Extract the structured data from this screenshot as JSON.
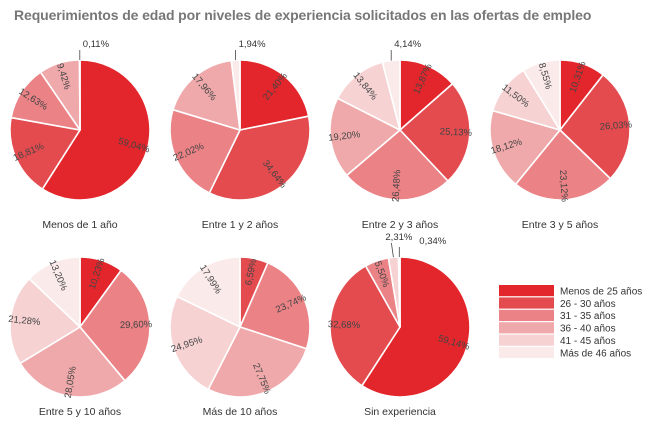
{
  "title": "Requerimientos de edad por niveles de experiencia solicitados en las ofertas de empleo",
  "colors": [
    "#e3262b",
    "#e34b4f",
    "#ea8286",
    "#f0a9ab",
    "#f6d2d3",
    "#fbeaea"
  ],
  "legend": {
    "entries": [
      "Menos de 25 años",
      "26 - 30 años",
      "31 - 35 años",
      "36 - 40 años",
      "41 - 45 años",
      "Más de 46 años"
    ],
    "placement": "right"
  },
  "chart_data": [
    {
      "type": "pie",
      "title": "Menos de 1 año",
      "categories": [
        "Menos de 25 años",
        "26 - 30 años",
        "31 - 35 años",
        "36 - 40 años",
        "41 - 45 años",
        "Más de 46 años"
      ],
      "values": [
        59.04,
        18.81,
        12.63,
        9.42,
        0,
        0.11
      ],
      "labels": [
        "59,04%",
        "18,81%",
        "12,63%",
        "9,42%",
        "",
        "0,11%"
      ]
    },
    {
      "type": "pie",
      "title": "Entre 1 y 2 años",
      "categories": [
        "Menos de 25 años",
        "26 - 30 años",
        "31 - 35 años",
        "36 - 40 años",
        "41 - 45 años",
        "Más de 46 años"
      ],
      "values": [
        21.4,
        34.64,
        22.02,
        17.96,
        0,
        1.94
      ],
      "labels": [
        "21,40%",
        "34,64%",
        "22,02%",
        "17,96%",
        "",
        "1,94%"
      ]
    },
    {
      "type": "pie",
      "title": "Entre 2 y 3 años",
      "categories": [
        "Menos de 25 años",
        "26 - 30 años",
        "31 - 35 años",
        "36 - 40 años",
        "41 - 45 años",
        "Más de 46 años"
      ],
      "values": [
        13.87,
        25.13,
        26.48,
        19.2,
        13.84,
        4.14
      ],
      "labels": [
        "13,87%",
        "25,13%",
        "26,48%",
        "19,20%",
        "13,84%",
        "4,14%"
      ]
    },
    {
      "type": "pie",
      "title": "Entre 3 y 5 años",
      "categories": [
        "Menos de 25 años",
        "26 - 30 años",
        "31 - 35 años",
        "36 - 40 años",
        "41 - 45 años",
        "Más de 46 años"
      ],
      "values": [
        10.31,
        26.03,
        23.12,
        18.12,
        11.5,
        8.55
      ],
      "labels": [
        "10,31%",
        "26,03%",
        "23,12%",
        "18,12%",
        "11,50%",
        "8,55%"
      ]
    },
    {
      "type": "pie",
      "title": "Entre 5 y 10 años",
      "categories": [
        "Menos de 25 años",
        "26 - 30 años",
        "31 - 35 años",
        "36 - 40 años",
        "41 - 45 años",
        "Más de 46 años"
      ],
      "values": [
        10.23,
        0,
        29.6,
        28.05,
        21.28,
        13.2
      ],
      "labels": [
        "10,23%",
        "",
        "29,60%",
        "28,05%",
        "21,28%",
        "13,20%"
      ]
    },
    {
      "type": "pie",
      "title": "Más de 10 años",
      "categories": [
        "Menos de 25 años",
        "26 - 30 años",
        "31 - 35 años",
        "36 - 40 años",
        "41 - 45 años",
        "Más de 46 años"
      ],
      "values": [
        0,
        6.59,
        23.74,
        27.75,
        24.95,
        17.99
      ],
      "labels": [
        "",
        "6,59%",
        "23,74%",
        "27,75%",
        "24,95%",
        "17,99%"
      ]
    },
    {
      "type": "pie",
      "title": "Sin experiencia",
      "categories": [
        "Menos de 25 años",
        "26 - 30 años",
        "31 - 35 años",
        "36 - 40 años",
        "41 - 45 años",
        "Más de 46 años"
      ],
      "values": [
        59.14,
        32.68,
        5.5,
        0,
        2.31,
        0.34
      ],
      "labels": [
        "59,14%",
        "32,68%",
        "5,50%",
        "",
        "2,31%",
        "0,34%"
      ]
    }
  ]
}
